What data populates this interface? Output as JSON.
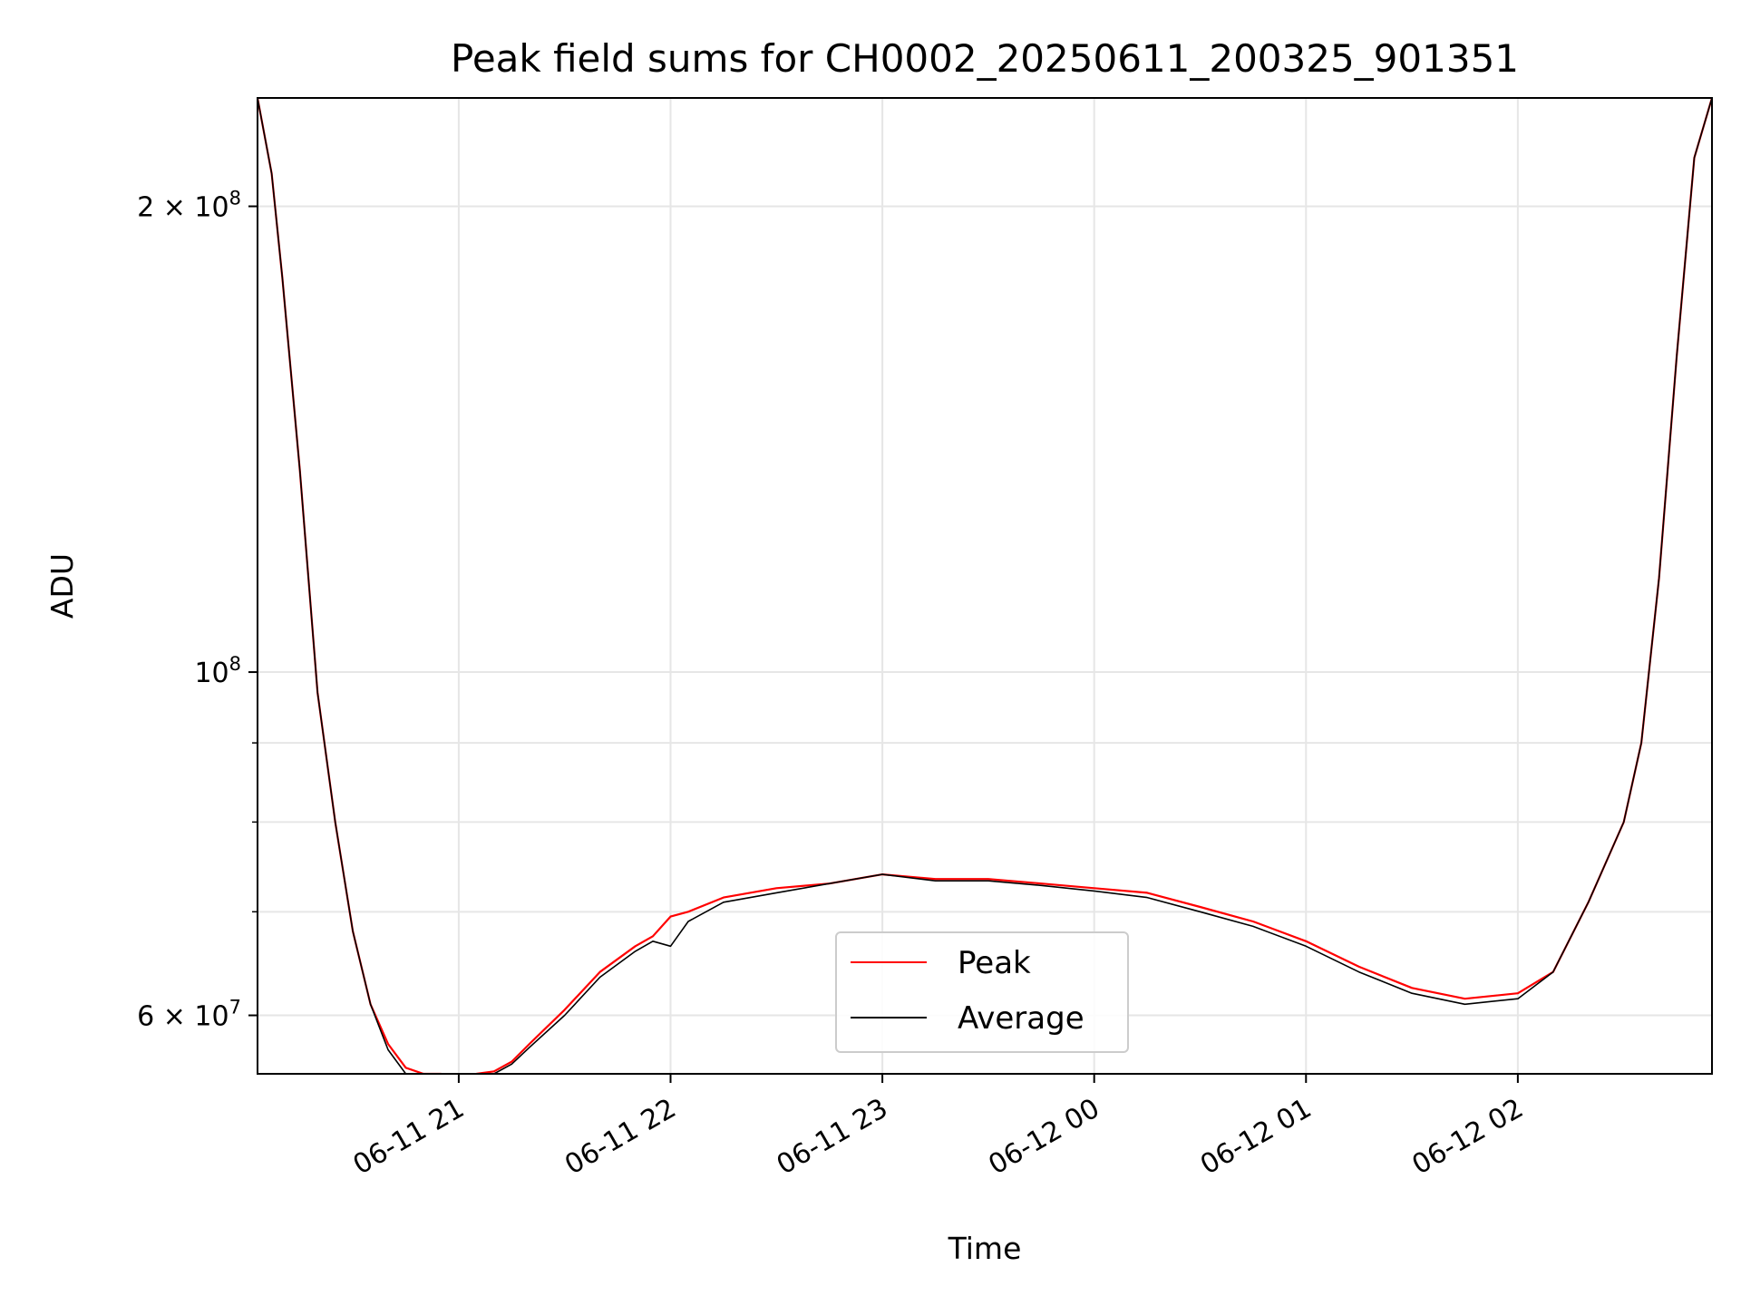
{
  "chart_data": {
    "type": "line",
    "title": "Peak field sums for CH0002_20250611_200325_901351",
    "xlabel": "Time",
    "ylabel": "ADU",
    "yscale": "log",
    "ylim": [
      55000000,
      235000000
    ],
    "xlim": [
      "2025-06-11 20:03",
      "2025-06-12 02:55"
    ],
    "grid": true,
    "legend_position": "lower center",
    "x_ticks": [
      {
        "t": "2025-06-11 21:00",
        "label": "06-11 21"
      },
      {
        "t": "2025-06-11 22:00",
        "label": "06-11 22"
      },
      {
        "t": "2025-06-11 23:00",
        "label": "06-11 23"
      },
      {
        "t": "2025-06-12 00:00",
        "label": "06-12 00"
      },
      {
        "t": "2025-06-12 01:00",
        "label": "06-12 01"
      },
      {
        "t": "2025-06-12 02:00",
        "label": "06-12 02"
      }
    ],
    "y_ticks_major": [
      {
        "v": 60000000,
        "label": "6 × 10",
        "exp": "7"
      },
      {
        "v": 100000000,
        "label": "10",
        "exp": "8"
      },
      {
        "v": 200000000,
        "label": "2 × 10",
        "exp": "8"
      }
    ],
    "y_ticks_minor": [
      70000000,
      80000000,
      90000000
    ],
    "series": [
      {
        "name": "Peak",
        "color": "#ff0000",
        "x": [
          "2025-06-11 20:03",
          "2025-06-11 20:07",
          "2025-06-11 20:10",
          "2025-06-11 20:15",
          "2025-06-11 20:20",
          "2025-06-11 20:25",
          "2025-06-11 20:30",
          "2025-06-11 20:35",
          "2025-06-11 20:40",
          "2025-06-11 20:45",
          "2025-06-11 20:50",
          "2025-06-11 20:55",
          "2025-06-11 21:00",
          "2025-06-11 21:05",
          "2025-06-11 21:10",
          "2025-06-11 21:15",
          "2025-06-11 21:20",
          "2025-06-11 21:30",
          "2025-06-11 21:40",
          "2025-06-11 21:50",
          "2025-06-11 21:55",
          "2025-06-11 22:00",
          "2025-06-11 22:05",
          "2025-06-11 22:15",
          "2025-06-11 22:30",
          "2025-06-11 22:45",
          "2025-06-11 23:00",
          "2025-06-11 23:15",
          "2025-06-11 23:30",
          "2025-06-11 23:45",
          "2025-06-12 00:00",
          "2025-06-12 00:15",
          "2025-06-12 00:30",
          "2025-06-12 00:45",
          "2025-06-12 01:00",
          "2025-06-12 01:15",
          "2025-06-12 01:30",
          "2025-06-12 01:45",
          "2025-06-12 02:00",
          "2025-06-12 02:10",
          "2025-06-12 02:20",
          "2025-06-12 02:30",
          "2025-06-12 02:35",
          "2025-06-12 02:40",
          "2025-06-12 02:45",
          "2025-06-12 02:50",
          "2025-06-12 02:55"
        ],
        "values": [
          235000000,
          210000000,
          180000000,
          135000000,
          97000000,
          80000000,
          68000000,
          61000000,
          57500000,
          55500000,
          55000000,
          55000000,
          54500000,
          55000000,
          55200000,
          56000000,
          57500000,
          60500000,
          64000000,
          66500000,
          67500000,
          69500000,
          70000000,
          71500000,
          72500000,
          73000000,
          74000000,
          73500000,
          73500000,
          73000000,
          72500000,
          72000000,
          70500000,
          69000000,
          67000000,
          64500000,
          62500000,
          61500000,
          62000000,
          64000000,
          71000000,
          80000000,
          90000000,
          115000000,
          160000000,
          215000000,
          235000000
        ]
      },
      {
        "name": "Average",
        "color": "#000000",
        "x": [
          "2025-06-11 20:03",
          "2025-06-11 20:07",
          "2025-06-11 20:10",
          "2025-06-11 20:15",
          "2025-06-11 20:20",
          "2025-06-11 20:25",
          "2025-06-11 20:30",
          "2025-06-11 20:35",
          "2025-06-11 20:40",
          "2025-06-11 20:45",
          "2025-06-11 20:50",
          "2025-06-11 20:55",
          "2025-06-11 21:00",
          "2025-06-11 21:05",
          "2025-06-11 21:10",
          "2025-06-11 21:15",
          "2025-06-11 21:20",
          "2025-06-11 21:30",
          "2025-06-11 21:40",
          "2025-06-11 21:50",
          "2025-06-11 21:55",
          "2025-06-11 22:00",
          "2025-06-11 22:05",
          "2025-06-11 22:15",
          "2025-06-11 22:30",
          "2025-06-11 22:45",
          "2025-06-11 23:00",
          "2025-06-11 23:15",
          "2025-06-11 23:30",
          "2025-06-11 23:45",
          "2025-06-12 00:00",
          "2025-06-12 00:15",
          "2025-06-12 00:30",
          "2025-06-12 00:45",
          "2025-06-12 01:00",
          "2025-06-12 01:15",
          "2025-06-12 01:30",
          "2025-06-12 01:45",
          "2025-06-12 02:00",
          "2025-06-12 02:10",
          "2025-06-12 02:20",
          "2025-06-12 02:30",
          "2025-06-12 02:35",
          "2025-06-12 02:40",
          "2025-06-12 02:45",
          "2025-06-12 02:50",
          "2025-06-12 02:55"
        ],
        "values": [
          235000000,
          210000000,
          180000000,
          135000000,
          97000000,
          80000000,
          68000000,
          61000000,
          57000000,
          55000000,
          54500000,
          54500000,
          54300000,
          54800000,
          55000000,
          55800000,
          57200000,
          60000000,
          63500000,
          66000000,
          67000000,
          66500000,
          69000000,
          71000000,
          72000000,
          73000000,
          74000000,
          73300000,
          73300000,
          72800000,
          72200000,
          71500000,
          70000000,
          68500000,
          66500000,
          64000000,
          62000000,
          61000000,
          61500000,
          64000000,
          71000000,
          80000000,
          90000000,
          115000000,
          160000000,
          215000000,
          235000000
        ]
      }
    ]
  }
}
